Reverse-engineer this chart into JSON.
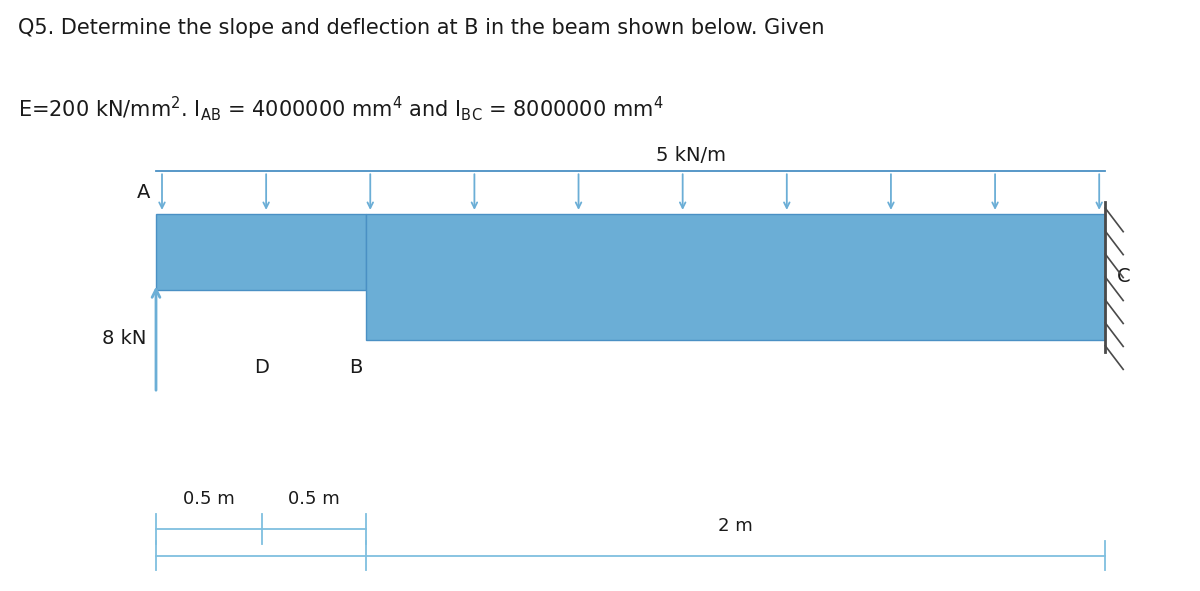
{
  "bg_color": "#ffffff",
  "text_color": "#1a1a1a",
  "beam_color": "#6baed6",
  "beam_edge_color": "#4a90c4",
  "arrow_color": "#6baed6",
  "dim_line_color": "#7fbfdf",
  "wall_line_color": "#4a4a4a",
  "title_line1": "Q5. Determine the slope and deflection at B in the beam shown below. Given",
  "title_line2": "E=200 kN/mm². I",
  "label_A": "A",
  "label_B": "B",
  "label_C": "C",
  "label_D": "D",
  "label_8kN": "8 kN",
  "label_5kNm": "5 kN/m",
  "label_05m_1": "0.5 m",
  "label_05m_2": "0.5 m",
  "label_2m": "2 m",
  "fontsize_title": 15,
  "fontsize_label": 14,
  "fontsize_dim": 13
}
